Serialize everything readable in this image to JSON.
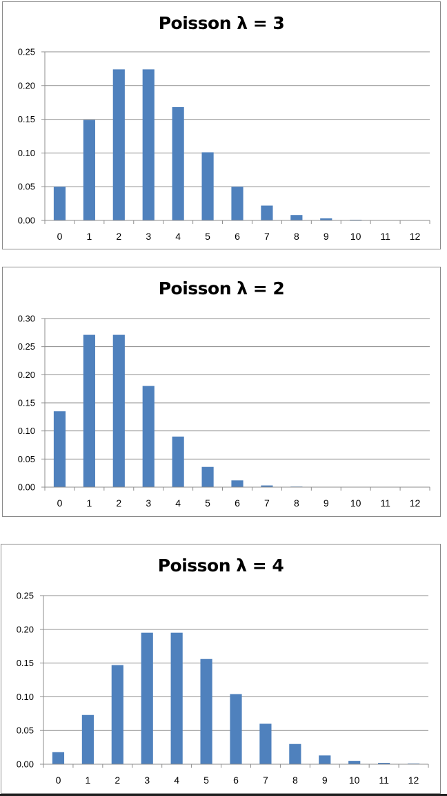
{
  "chart_data": [
    {
      "type": "bar",
      "title": "Poisson λ = 3",
      "categories": [
        "0",
        "1",
        "2",
        "3",
        "4",
        "5",
        "6",
        "7",
        "8",
        "9",
        "10",
        "11",
        "12"
      ],
      "values": [
        0.05,
        0.149,
        0.224,
        0.224,
        0.168,
        0.101,
        0.05,
        0.022,
        0.008,
        0.003,
        0.001,
        0.0003,
        0.0001
      ],
      "ylim": [
        0,
        0.25
      ],
      "yticks": [
        "0.00",
        "0.05",
        "0.10",
        "0.15",
        "0.20",
        "0.25"
      ],
      "xlabel": "",
      "ylabel": "",
      "grid": true,
      "bar_color": "#4f81bd"
    },
    {
      "type": "bar",
      "title": "Poisson λ = 2",
      "categories": [
        "0",
        "1",
        "2",
        "3",
        "4",
        "5",
        "6",
        "7",
        "8",
        "9",
        "10",
        "11",
        "12"
      ],
      "values": [
        0.135,
        0.271,
        0.271,
        0.18,
        0.09,
        0.036,
        0.012,
        0.003,
        0.001,
        0.0002,
        4e-05,
        1e-05,
        1e-06
      ],
      "ylim": [
        0,
        0.3
      ],
      "yticks": [
        "0.00",
        "0.05",
        "0.10",
        "0.15",
        "0.20",
        "0.25",
        "0.30"
      ],
      "xlabel": "",
      "ylabel": "",
      "grid": true,
      "bar_color": "#4f81bd"
    },
    {
      "type": "bar",
      "title": "Poisson λ = 4",
      "categories": [
        "0",
        "1",
        "2",
        "3",
        "4",
        "5",
        "6",
        "7",
        "8",
        "9",
        "10",
        "11",
        "12"
      ],
      "values": [
        0.018,
        0.073,
        0.147,
        0.195,
        0.195,
        0.156,
        0.104,
        0.06,
        0.03,
        0.013,
        0.005,
        0.002,
        0.001
      ],
      "ylim": [
        0,
        0.25
      ],
      "yticks": [
        "0.00",
        "0.05",
        "0.10",
        "0.15",
        "0.20",
        "0.25"
      ],
      "xlabel": "",
      "ylabel": "",
      "grid": true,
      "bar_color": "#4f81bd"
    }
  ]
}
